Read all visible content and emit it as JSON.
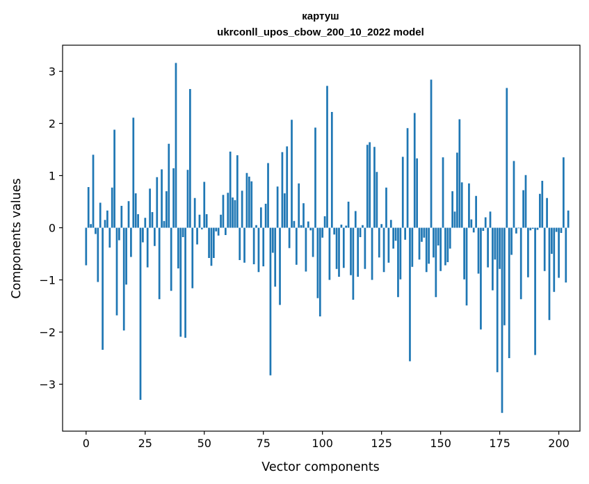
{
  "chart_data": {
    "type": "bar",
    "title_line1": "картуш",
    "title_line2": "ukrconll_upos_cbow_200_10_2022 model",
    "xlabel": "Vector components",
    "ylabel": "Components values",
    "xlim": [
      -9.95,
      208.95
    ],
    "ylim": [
      -3.9,
      3.5
    ],
    "xticks": [
      0,
      25,
      50,
      75,
      100,
      125,
      150,
      175,
      200
    ],
    "xtick_labels": [
      "0",
      "25",
      "50",
      "75",
      "100",
      "125",
      "150",
      "175",
      "200"
    ],
    "yticks": [
      -3,
      -2,
      -1,
      0,
      1,
      2,
      3
    ],
    "ytick_labels": [
      "−3",
      "−2",
      "−1",
      "0",
      "1",
      "2",
      "3"
    ],
    "bar_color": "#1f77b4",
    "values": [
      -0.72,
      0.78,
      0.07,
      1.4,
      -0.12,
      -1.04,
      0.48,
      -2.34,
      0.15,
      0.33,
      -0.38,
      0.77,
      1.88,
      -1.68,
      -0.24,
      0.42,
      -1.97,
      -1.09,
      0.51,
      -0.56,
      2.11,
      0.66,
      0.26,
      -3.3,
      -0.28,
      0.19,
      -0.76,
      0.75,
      0.3,
      -0.35,
      0.97,
      -1.37,
      1.12,
      0.13,
      0.7,
      1.61,
      -1.21,
      1.14,
      3.16,
      -0.78,
      -2.09,
      -0.18,
      -2.11,
      1.11,
      2.66,
      -1.16,
      0.57,
      -0.32,
      0.25,
      -0.03,
      0.88,
      0.26,
      -0.58,
      -0.73,
      -0.58,
      -0.07,
      -0.15,
      0.25,
      0.63,
      -0.14,
      0.67,
      1.46,
      0.58,
      0.53,
      1.39,
      -0.62,
      0.71,
      -0.67,
      1.05,
      0.98,
      0.89,
      -0.7,
      0.05,
      -0.85,
      0.39,
      -0.74,
      0.46,
      1.24,
      -2.83,
      -0.48,
      -1.13,
      0.79,
      -1.48,
      1.45,
      0.66,
      1.56,
      -0.39,
      2.07,
      0.13,
      -0.71,
      0.85,
      0.05,
      0.47,
      -0.84,
      0.12,
      -0.05,
      -0.56,
      1.92,
      -1.35,
      -1.7,
      -0.19,
      0.22,
      2.72,
      -1.0,
      2.22,
      -0.13,
      -0.79,
      -0.94,
      0.06,
      -0.77,
      0.04,
      0.5,
      -0.91,
      -1.38,
      0.32,
      -0.94,
      -0.18,
      0.05,
      -0.79,
      1.59,
      1.64,
      -1.0,
      1.55,
      1.07,
      -0.57,
      0.07,
      -0.85,
      0.77,
      -0.67,
      0.15,
      -0.4,
      -0.25,
      -1.33,
      -0.99,
      1.36,
      -0.23,
      1.91,
      -2.56,
      -0.75,
      2.2,
      1.33,
      -0.61,
      -0.27,
      -0.19,
      -0.85,
      -0.69,
      2.84,
      -0.57,
      -1.33,
      -0.34,
      -0.83,
      1.35,
      -0.72,
      -0.66,
      -0.4,
      0.7,
      0.31,
      1.44,
      2.08,
      0.87,
      -0.99,
      -1.49,
      0.85,
      0.16,
      -0.09,
      0.61,
      -0.88,
      -1.95,
      -0.06,
      0.2,
      -0.76,
      0.31,
      -1.2,
      -0.61,
      -2.77,
      -0.79,
      -3.55,
      -1.87,
      2.68,
      -2.5,
      -0.52,
      1.28,
      -0.11,
      -0.01,
      -1.37,
      0.72,
      1.01,
      -0.95,
      -0.05,
      -0.02,
      -2.44,
      -0.04,
      0.65,
      0.9,
      -0.83,
      0.57,
      -1.77,
      -0.5,
      -1.23,
      -0.08,
      -0.96,
      -0.1,
      1.35,
      -1.05,
      0.33
    ]
  }
}
